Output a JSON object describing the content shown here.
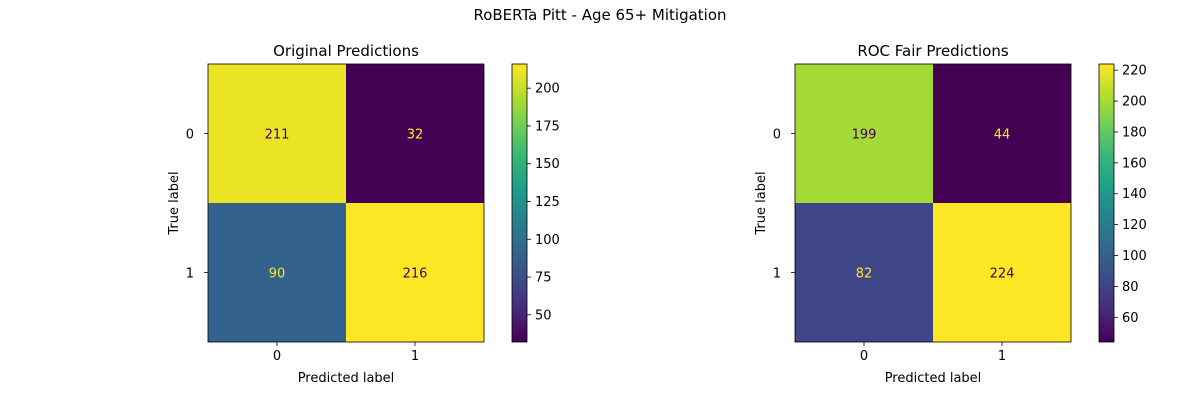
{
  "figure_title": "RoBERTa Pitt - Age 65+ Mitigation",
  "colormap": "viridis",
  "chart_data": [
    {
      "type": "heatmap",
      "title": "Original Predictions",
      "xlabel": "Predicted label",
      "ylabel": "True label",
      "x_tick_labels": [
        "0",
        "1"
      ],
      "y_tick_labels": [
        "0",
        "1"
      ],
      "matrix": [
        [
          211,
          32
        ],
        [
          90,
          216
        ]
      ],
      "colorbar": {
        "range": [
          32,
          216
        ],
        "ticks": [
          "50",
          "75",
          "100",
          "125",
          "150",
          "175",
          "200"
        ]
      },
      "text_colors": {
        "on_dark": "#fde725",
        "on_light": "#440154"
      }
    },
    {
      "type": "heatmap",
      "title": "ROC Fair Predictions",
      "xlabel": "Predicted label",
      "ylabel": "True label",
      "x_tick_labels": [
        "0",
        "1"
      ],
      "y_tick_labels": [
        "0",
        "1"
      ],
      "matrix": [
        [
          199,
          44
        ],
        [
          82,
          224
        ]
      ],
      "colorbar": {
        "range": [
          44,
          224
        ],
        "ticks": [
          "60",
          "80",
          "100",
          "120",
          "140",
          "160",
          "180",
          "200",
          "220"
        ]
      },
      "text_colors": {
        "on_dark": "#fde725",
        "on_light": "#440154"
      }
    }
  ]
}
